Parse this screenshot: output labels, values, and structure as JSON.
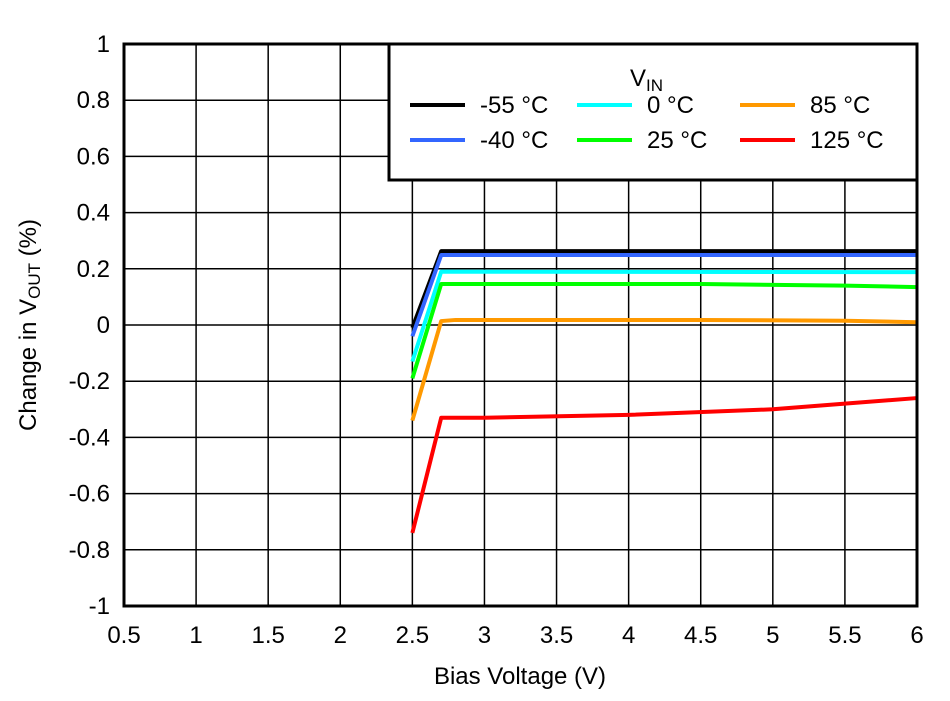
{
  "chart_data": {
    "type": "line",
    "xlabel": "Bias Voltage (V)",
    "ylabel_parts": {
      "main": "Change in V",
      "sub": "OUT",
      "suffix": " (%)"
    },
    "xlim": [
      0.5,
      6
    ],
    "ylim": [
      -1,
      1
    ],
    "xticks": [
      "0.5",
      "1",
      "1.5",
      "2",
      "2.5",
      "3",
      "3.5",
      "4",
      "4.5",
      "5",
      "5.5",
      "6"
    ],
    "yticks": [
      "1",
      "0.8",
      "0.6",
      "0.4",
      "0.2",
      "0",
      "-0.2",
      "-0.4",
      "-0.6",
      "-0.8",
      "-1"
    ],
    "grid": true,
    "legend": {
      "title_main": "V",
      "title_sub": "IN",
      "placement": "top-right"
    },
    "series": [
      {
        "name": "-55 °C",
        "color": "#000000",
        "x": [
          2.5,
          2.7,
          6
        ],
        "y": [
          -0.01,
          0.263,
          0.263
        ]
      },
      {
        "name": "-40 °C",
        "color": "#3366ff",
        "x": [
          2.5,
          2.7,
          6
        ],
        "y": [
          -0.04,
          0.249,
          0.249
        ]
      },
      {
        "name": "0 °C",
        "color": "#00ffff",
        "x": [
          2.5,
          2.7,
          6
        ],
        "y": [
          -0.13,
          0.19,
          0.188
        ]
      },
      {
        "name": "25 °C",
        "color": "#00ff00",
        "x": [
          2.5,
          2.7,
          4.5,
          5.5,
          6
        ],
        "y": [
          -0.19,
          0.146,
          0.146,
          0.14,
          0.135
        ]
      },
      {
        "name": "85 °C",
        "color": "#ff9900",
        "x": [
          2.5,
          2.7,
          2.8,
          4.5,
          5.5,
          6
        ],
        "y": [
          -0.34,
          0.014,
          0.018,
          0.018,
          0.015,
          0.01
        ]
      },
      {
        "name": "125 °C",
        "color": "#ff0000",
        "x": [
          2.5,
          2.7,
          3,
          4,
          5,
          5.5,
          6
        ],
        "y": [
          -0.74,
          -0.33,
          -0.33,
          -0.32,
          -0.3,
          -0.28,
          -0.26
        ]
      }
    ]
  }
}
